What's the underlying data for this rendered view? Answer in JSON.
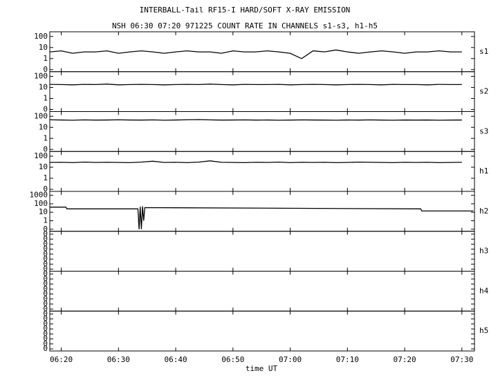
{
  "title": "INTERBALL-Tail RF15-I HARD/SOFT X-RAY EMISSION",
  "subtitle": "NSH 06:30 07:20 971225  COUNT RATE IN CHANNELS s1-s3, h1-h5",
  "x_axis": {
    "label": "time UT",
    "xlim": [
      378,
      452.2
    ],
    "xticks": [
      {
        "value": 380,
        "label": "06:20"
      },
      {
        "value": 390,
        "label": "06:30"
      },
      {
        "value": 400,
        "label": "06:40"
      },
      {
        "value": 410,
        "label": "06:50"
      },
      {
        "value": 420,
        "label": "07:00"
      },
      {
        "value": 430,
        "label": "07:10"
      },
      {
        "value": 440,
        "label": "07:20"
      },
      {
        "value": 450,
        "label": "07:30"
      }
    ],
    "x": [
      378,
      380,
      382,
      384,
      386,
      388,
      390,
      392,
      394,
      396,
      398,
      400,
      402,
      404,
      406,
      408,
      410,
      412,
      414,
      416,
      418,
      420,
      422,
      424,
      426,
      428,
      430,
      432,
      434,
      436,
      438,
      440,
      442,
      444,
      446,
      448,
      450
    ]
  },
  "chart_data": [
    {
      "type": "line",
      "name": "s1",
      "color": "#000000",
      "yscale": "log",
      "ylim": [
        0,
        100
      ],
      "yticks": [
        0,
        1,
        10,
        100
      ],
      "values": [
        4,
        5,
        3,
        4,
        4,
        5,
        3,
        4,
        5,
        4,
        3,
        4,
        5,
        4,
        4,
        3,
        5,
        4,
        4,
        5,
        4,
        3,
        1,
        5,
        4,
        6,
        4,
        3,
        4,
        5,
        4,
        3,
        4,
        4,
        5,
        4,
        4
      ]
    },
    {
      "type": "line",
      "name": "s2",
      "color": "#000000",
      "yscale": "log",
      "ylim": [
        0,
        100
      ],
      "yticks": [
        0,
        1,
        10,
        100
      ],
      "values": [
        19,
        18,
        17,
        19,
        18,
        20,
        17,
        18,
        19,
        18,
        17,
        18,
        19,
        18,
        20,
        18,
        17,
        19,
        18,
        18,
        19,
        17,
        18,
        19,
        18,
        17,
        18,
        19,
        18,
        17,
        19,
        18,
        18,
        17,
        19,
        18,
        18
      ]
    },
    {
      "type": "line",
      "name": "s3",
      "color": "#000000",
      "yscale": "log",
      "ylim": [
        0,
        100
      ],
      "yticks": [
        0,
        1,
        10,
        100
      ],
      "values": [
        48,
        46,
        44,
        47,
        45,
        46,
        48,
        46,
        45,
        47,
        44,
        46,
        48,
        50,
        47,
        45,
        46,
        47,
        45,
        46,
        44,
        45,
        47,
        46,
        45,
        44,
        46,
        45,
        47,
        45,
        44,
        46,
        45,
        46,
        44,
        45,
        46
      ]
    },
    {
      "type": "line",
      "name": "h1",
      "color": "#000000",
      "yscale": "log",
      "ylim": [
        0,
        100
      ],
      "yticks": [
        0,
        1,
        10,
        100
      ],
      "values": [
        27,
        28,
        26,
        29,
        27,
        28,
        27,
        26,
        29,
        35,
        27,
        28,
        26,
        29,
        38,
        28,
        27,
        26,
        28,
        27,
        29,
        26,
        28,
        27,
        28,
        26,
        27,
        29,
        28,
        27,
        26,
        28,
        27,
        28,
        26,
        27,
        28
      ]
    },
    {
      "type": "line",
      "name": "h2",
      "color": "#000000",
      "yscale": "log",
      "ylim": [
        0,
        1000
      ],
      "yticks": [
        0,
        1,
        10,
        100,
        1000
      ],
      "x": [
        378,
        380.8,
        381,
        393.4,
        393.6,
        393.8,
        394.0,
        394.2,
        394.4,
        394.6,
        442.8,
        443,
        452
      ],
      "values": [
        40,
        40,
        25,
        25,
        0,
        45,
        0,
        50,
        1,
        35,
        25,
        14,
        14
      ]
    },
    {
      "type": "line",
      "name": "h3",
      "color": "#000000",
      "yscale": "log",
      "ylim": [
        0,
        0.1
      ],
      "yticks": [
        0,
        {
          "value": 1e-07,
          "label": "0"
        },
        {
          "value": 1e-06,
          "label": "0"
        },
        {
          "value": 1e-05,
          "label": "0"
        },
        {
          "value": 0.0001,
          "label": "0"
        },
        {
          "value": 0.001,
          "label": "0"
        },
        {
          "value": 0.01,
          "label": "0"
        },
        {
          "value": 0.1,
          "label": "0"
        }
      ]
    },
    {
      "type": "line",
      "name": "h4",
      "color": "#000000",
      "yscale": "log",
      "ylim": [
        0,
        0.1
      ],
      "yticks": [
        0,
        {
          "value": 1e-07,
          "label": "0"
        },
        {
          "value": 1e-06,
          "label": "0"
        },
        {
          "value": 1e-05,
          "label": "0"
        },
        {
          "value": 0.0001,
          "label": "0"
        },
        {
          "value": 0.001,
          "label": "0"
        },
        {
          "value": 0.01,
          "label": "0"
        },
        {
          "value": 0.1,
          "label": "0"
        }
      ]
    },
    {
      "type": "line",
      "name": "h5",
      "color": "#000000",
      "yscale": "log",
      "ylim": [
        0,
        0.1
      ],
      "yticks": [
        0,
        {
          "value": 1e-07,
          "label": "0"
        },
        {
          "value": 1e-06,
          "label": "0"
        },
        {
          "value": 1e-05,
          "label": "0"
        },
        {
          "value": 0.0001,
          "label": "0"
        },
        {
          "value": 0.001,
          "label": "0"
        },
        {
          "value": 0.01,
          "label": "0"
        },
        {
          "value": 0.1,
          "label": "0"
        }
      ]
    }
  ]
}
